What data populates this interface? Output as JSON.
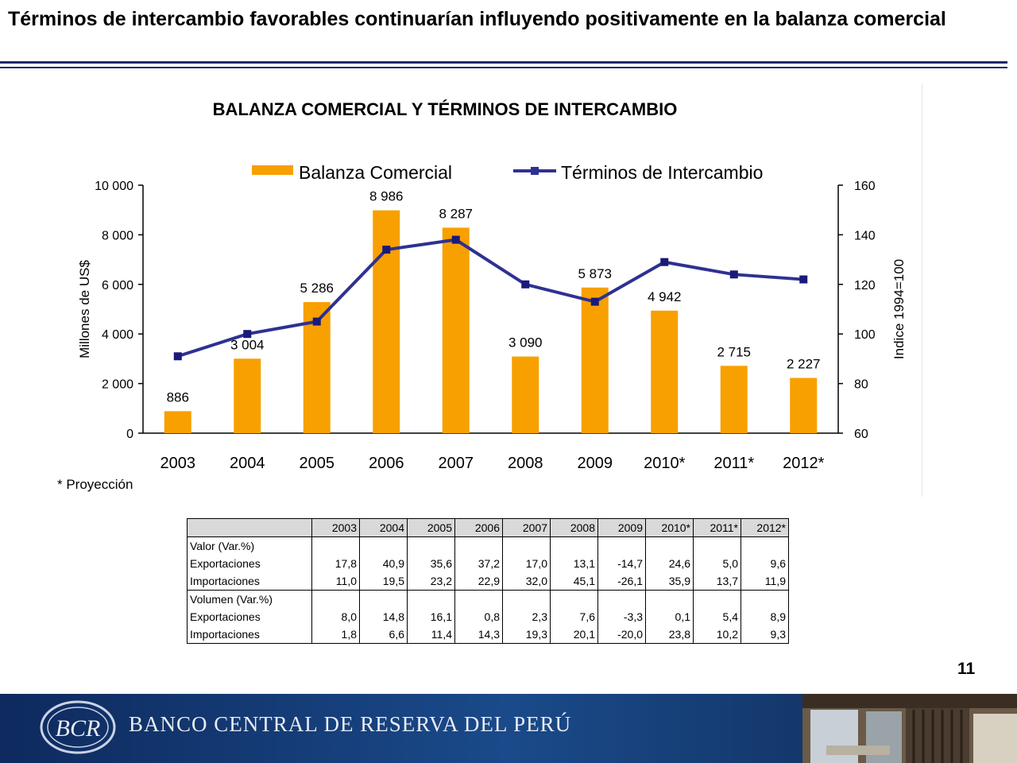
{
  "slide": {
    "title": "Términos de intercambio  favorables continuarían influyendo positivamente en la balanza comercial",
    "page_number": "11",
    "footnote": "* Proyección"
  },
  "chart_data": {
    "type": "bar",
    "title": "BALANZA COMERCIAL  Y TÉRMINOS DE INTERCAMBIO",
    "categories": [
      "2003",
      "2004",
      "2005",
      "2006",
      "2007",
      "2008",
      "2009",
      "2010*",
      "2011*",
      "2012*"
    ],
    "series": [
      {
        "name": "Balanza Comercial",
        "type": "bar",
        "axis": "left",
        "color": "#f7a000",
        "values": [
          886,
          3004,
          5286,
          8986,
          8287,
          3090,
          5873,
          4942,
          2715,
          2227
        ],
        "labels": [
          "886",
          "3 004",
          "5 286",
          "8 986",
          "8 287",
          "3 090",
          "5 873",
          "4 942",
          "2 715",
          "2 227"
        ]
      },
      {
        "name": "Términos de Intercambio",
        "type": "line",
        "axis": "right",
        "color": "#2e3192",
        "values": [
          91,
          100,
          105,
          134,
          138,
          120,
          113,
          129,
          124,
          122
        ]
      }
    ],
    "ylabel": "Millones de US$",
    "ylabel_right": "Indice 1994=100",
    "ylim": [
      0,
      10000
    ],
    "ylim_right": [
      60,
      160
    ],
    "yticks": [
      "0",
      "2 000",
      "4 000",
      "6 000",
      "8 000",
      "10 000"
    ],
    "yticks_right": [
      "60",
      "80",
      "100",
      "120",
      "140",
      "160"
    ],
    "legend": "top"
  },
  "table": {
    "headers": [
      "",
      "2003",
      "2004",
      "2005",
      "2006",
      "2007",
      "2008",
      "2009",
      "2010*",
      "2011*",
      "2012*"
    ],
    "sections": [
      {
        "title": "Valor (Var.%)",
        "rows": [
          {
            "label": "Exportaciones",
            "values": [
              "17,8",
              "40,9",
              "35,6",
              "37,2",
              "17,0",
              "13,1",
              "-14,7",
              "24,6",
              "5,0",
              "9,6"
            ]
          },
          {
            "label": "Importaciones",
            "values": [
              "11,0",
              "19,5",
              "23,2",
              "22,9",
              "32,0",
              "45,1",
              "-26,1",
              "35,9",
              "13,7",
              "11,9"
            ]
          }
        ]
      },
      {
        "title": "Volumen (Var.%)",
        "rows": [
          {
            "label": "Exportaciones",
            "values": [
              "8,0",
              "14,8",
              "16,1",
              "0,8",
              "2,3",
              "7,6",
              "-3,3",
              "0,1",
              "5,4",
              "8,9"
            ]
          },
          {
            "label": "Importaciones",
            "values": [
              "1,8",
              "6,6",
              "11,4",
              "14,3",
              "19,3",
              "20,1",
              "-20,0",
              "23,8",
              "10,2",
              "9,3"
            ]
          }
        ]
      }
    ]
  },
  "footer": {
    "bank_name": "BANCO CENTRAL DE RESERVA DEL PERÚ",
    "logo_text": "BCR",
    "colors": {
      "bar": "#1a4a8a"
    }
  }
}
